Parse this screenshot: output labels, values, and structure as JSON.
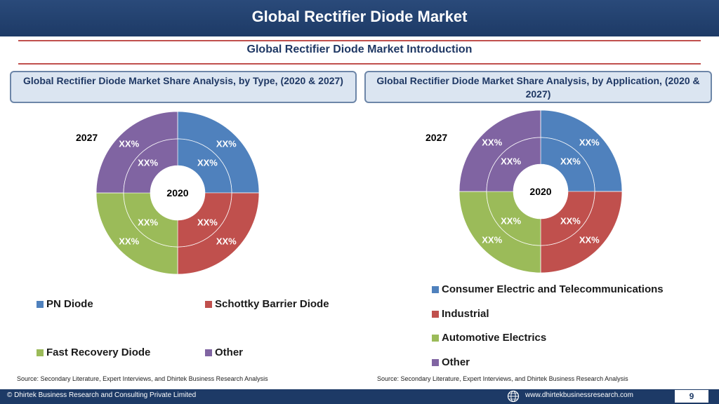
{
  "header": {
    "title": "Global Rectifier Diode Market"
  },
  "intro": "Global Rectifier Diode Market  Introduction",
  "colors": {
    "blue": "#4f81bd",
    "red": "#c0504d",
    "green": "#9bbb59",
    "purple": "#8064a2",
    "navy": "#1d3a66",
    "accent_line": "#c0504d"
  },
  "left": {
    "heading": "Global Rectifier Diode Market  Share Analysis, by Type, (2020 & 2027)",
    "outer_year": "2027",
    "inner_year": "2020",
    "outer_labels": [
      "XX%",
      "XX%",
      "XX%",
      "XX%"
    ],
    "inner_labels": [
      "XX%",
      "XX%",
      "XX%",
      "XX%"
    ],
    "legend": [
      "PN Diode",
      "Schottky Barrier Diode",
      "Fast Recovery Diode",
      "Other"
    ],
    "source": "Source: Secondary Literature, Expert Interviews, and Dhirtek Business Research Analysis"
  },
  "right": {
    "heading": "Global Rectifier Diode Market  Share Analysis, by Application, (2020 & 2027)",
    "outer_year": "2027",
    "inner_year": "2020",
    "outer_labels": [
      "XX%",
      "XX%",
      "XX%",
      "XX%"
    ],
    "inner_labels": [
      "XX%",
      "XX%",
      "XX%",
      "XX%"
    ],
    "legend": [
      "Consumer Electric and Telecommunications",
      "Industrial",
      "Automotive Electrics",
      "Other"
    ],
    "source": "Source: Secondary Literature, Expert Interviews, and Dhirtek Business Research Analysis"
  },
  "chart_data": [
    {
      "type": "pie",
      "variant": "doughnut",
      "categories": [
        "PN Diode",
        "Schottky Barrier Diode",
        "Fast Recovery Diode",
        "Other"
      ],
      "series": [
        {
          "name": "2020",
          "values": [
            25,
            25,
            25,
            25
          ]
        },
        {
          "name": "2027",
          "values": [
            25,
            25,
            25,
            25
          ]
        }
      ],
      "title": "Global Rectifier Diode Market  Share Analysis, by Type, (2020 & 2027)",
      "legend": "bottom"
    },
    {
      "type": "pie",
      "variant": "doughnut",
      "categories": [
        "Consumer Electric and Telecommunications",
        "Industrial",
        "Automotive Electrics",
        "Other"
      ],
      "series": [
        {
          "name": "2020",
          "values": [
            25,
            25,
            25,
            25
          ]
        },
        {
          "name": "2027",
          "values": [
            25,
            25,
            25,
            25
          ]
        }
      ],
      "title": "Global Rectifier Diode Market  Share Analysis, by Application, (2020 & 2027)",
      "legend": "bottom"
    }
  ],
  "footer": {
    "copyright": "© Dhirtek Business Research and Consulting Private Limited",
    "website": "www.dhirtekbusinessresearch.com",
    "page": "9"
  }
}
